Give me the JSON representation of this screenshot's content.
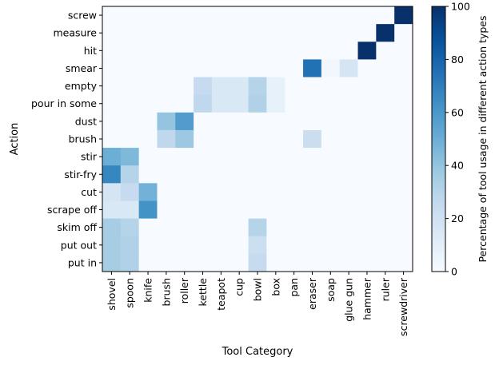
{
  "chart_data": {
    "type": "heatmap",
    "title": "",
    "xlabel": "Tool Category",
    "ylabel": "Action",
    "colorbar_label": "Percentage of tool usage in different action types",
    "colorbar_ticks": [
      0,
      20,
      40,
      60,
      80,
      100
    ],
    "vmin": 0,
    "vmax": 100,
    "colormap": "Blues",
    "x_categories": [
      "shovel",
      "spoon",
      "knife",
      "brush",
      "roller",
      "kettle",
      "teapot",
      "cup",
      "bowl",
      "box",
      "pan",
      "eraser",
      "soap",
      "glue gun",
      "hammer",
      "ruler",
      "screwdriver"
    ],
    "y_categories": [
      "screw",
      "measure",
      "hit",
      "smear",
      "empty",
      "pour in some",
      "dust",
      "brush",
      "stir",
      "stir-fry",
      "cut",
      "scrape off",
      "skim off",
      "put out",
      "put in"
    ],
    "values": [
      [
        0,
        0,
        0,
        0,
        0,
        0,
        0,
        0,
        0,
        0,
        0,
        0,
        0,
        0,
        0,
        0,
        100
      ],
      [
        0,
        0,
        0,
        0,
        0,
        0,
        0,
        0,
        0,
        0,
        0,
        0,
        0,
        0,
        0,
        100,
        0
      ],
      [
        0,
        0,
        0,
        0,
        0,
        0,
        0,
        0,
        0,
        0,
        0,
        0,
        0,
        0,
        100,
        0,
        0
      ],
      [
        0,
        0,
        0,
        0,
        0,
        0,
        0,
        0,
        0,
        0,
        0,
        75,
        3,
        17,
        0,
        0,
        0
      ],
      [
        0,
        0,
        0,
        0,
        0,
        25,
        15,
        15,
        30,
        8,
        0,
        0,
        0,
        0,
        0,
        0,
        0
      ],
      [
        0,
        0,
        0,
        0,
        0,
        27,
        15,
        15,
        32,
        8,
        0,
        0,
        0,
        0,
        0,
        0,
        0
      ],
      [
        0,
        0,
        0,
        40,
        58,
        0,
        0,
        0,
        0,
        0,
        0,
        0,
        0,
        0,
        0,
        0,
        0
      ],
      [
        0,
        0,
        0,
        27,
        38,
        0,
        0,
        0,
        0,
        0,
        0,
        23,
        0,
        0,
        0,
        0,
        0
      ],
      [
        50,
        45,
        0,
        0,
        0,
        0,
        0,
        0,
        0,
        0,
        0,
        0,
        0,
        0,
        0,
        0,
        0
      ],
      [
        67,
        30,
        0,
        0,
        0,
        0,
        0,
        0,
        0,
        0,
        0,
        0,
        0,
        0,
        0,
        0,
        0
      ],
      [
        17,
        25,
        48,
        0,
        0,
        0,
        0,
        0,
        0,
        0,
        0,
        0,
        0,
        0,
        0,
        0,
        0
      ],
      [
        15,
        15,
        62,
        0,
        0,
        0,
        0,
        0,
        0,
        0,
        0,
        0,
        0,
        0,
        0,
        0,
        0
      ],
      [
        35,
        30,
        0,
        0,
        0,
        0,
        0,
        0,
        30,
        0,
        0,
        0,
        0,
        0,
        0,
        0,
        0
      ],
      [
        35,
        32,
        0,
        0,
        0,
        0,
        0,
        0,
        22,
        0,
        0,
        0,
        0,
        0,
        0,
        0,
        0
      ],
      [
        35,
        32,
        0,
        0,
        0,
        0,
        0,
        0,
        25,
        0,
        0,
        0,
        0,
        0,
        0,
        0,
        0
      ]
    ]
  }
}
